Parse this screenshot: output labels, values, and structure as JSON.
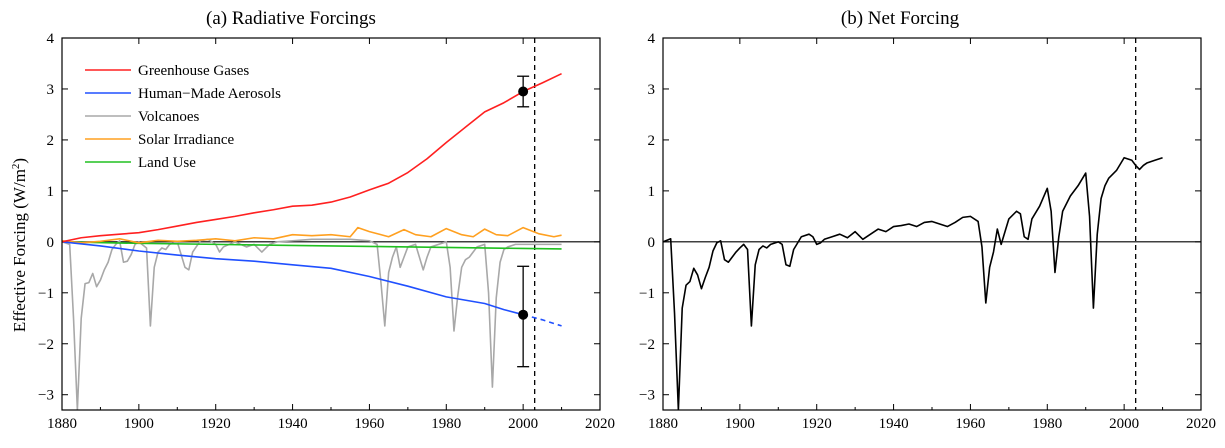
{
  "chart_data": [
    {
      "type": "line",
      "title": "(a)  Radiative Forcings",
      "ylabel": "Effective Forcing (W/m²)",
      "xlim": [
        1880,
        2020
      ],
      "ylim": [
        -3.3,
        4
      ],
      "xticks": [
        1880,
        1900,
        1920,
        1940,
        1960,
        1980,
        2000,
        2020
      ],
      "yticks": [
        -3,
        -2,
        -1,
        0,
        1,
        2,
        3,
        4
      ],
      "legend_position": "top-left",
      "reference_line_year": 2003,
      "series": [
        {
          "name": "Greenhouse Gases",
          "color": "#ff2020",
          "points": [
            [
              1880,
              0
            ],
            [
              1885,
              0.08
            ],
            [
              1890,
              0.12
            ],
            [
              1895,
              0.15
            ],
            [
              1900,
              0.18
            ],
            [
              1905,
              0.24
            ],
            [
              1910,
              0.31
            ],
            [
              1915,
              0.38
            ],
            [
              1920,
              0.44
            ],
            [
              1925,
              0.5
            ],
            [
              1930,
              0.57
            ],
            [
              1935,
              0.63
            ],
            [
              1940,
              0.7
            ],
            [
              1945,
              0.72
            ],
            [
              1950,
              0.78
            ],
            [
              1955,
              0.88
            ],
            [
              1960,
              1.02
            ],
            [
              1965,
              1.15
            ],
            [
              1970,
              1.36
            ],
            [
              1975,
              1.63
            ],
            [
              1980,
              1.95
            ],
            [
              1985,
              2.25
            ],
            [
              1990,
              2.55
            ],
            [
              1995,
              2.73
            ],
            [
              2000,
              2.95
            ],
            [
              2005,
              3.12
            ],
            [
              2010,
              3.3
            ]
          ]
        },
        {
          "name": "Human−Made Aerosols",
          "color": "#2050ff",
          "dashed_from": 2000,
          "points": [
            [
              1880,
              0
            ],
            [
              1890,
              -0.08
            ],
            [
              1900,
              -0.18
            ],
            [
              1910,
              -0.26
            ],
            [
              1920,
              -0.33
            ],
            [
              1930,
              -0.38
            ],
            [
              1940,
              -0.45
            ],
            [
              1950,
              -0.52
            ],
            [
              1960,
              -0.68
            ],
            [
              1970,
              -0.87
            ],
            [
              1980,
              -1.08
            ],
            [
              1990,
              -1.21
            ],
            [
              1995,
              -1.33
            ],
            [
              2000,
              -1.43
            ],
            [
              2005,
              -1.53
            ],
            [
              2010,
              -1.65
            ]
          ]
        },
        {
          "name": "Volcanoes",
          "color": "#a8a8a8",
          "points": [
            [
              1880,
              0
            ],
            [
              1882,
              -0.05
            ],
            [
              1883,
              -1.5
            ],
            [
              1884,
              -3.3
            ],
            [
              1885,
              -1.5
            ],
            [
              1886,
              -0.82
            ],
            [
              1887,
              -0.8
            ],
            [
              1888,
              -0.62
            ],
            [
              1889,
              -0.88
            ],
            [
              1890,
              -0.75
            ],
            [
              1891,
              -0.55
            ],
            [
              1892,
              -0.4
            ],
            [
              1893,
              -0.15
            ],
            [
              1894,
              -0.05
            ],
            [
              1895,
              0.02
            ],
            [
              1896,
              -0.4
            ],
            [
              1897,
              -0.38
            ],
            [
              1898,
              -0.25
            ],
            [
              1899,
              -0.05
            ],
            [
              1900,
              0
            ],
            [
              1902,
              -0.12
            ],
            [
              1903,
              -1.65
            ],
            [
              1904,
              -0.5
            ],
            [
              1905,
              -0.2
            ],
            [
              1906,
              -0.12
            ],
            [
              1907,
              -0.15
            ],
            [
              1908,
              -0.05
            ],
            [
              1910,
              0
            ],
            [
              1912,
              -0.5
            ],
            [
              1913,
              -0.55
            ],
            [
              1914,
              -0.2
            ],
            [
              1916,
              0.02
            ],
            [
              1918,
              0.05
            ],
            [
              1920,
              -0.05
            ],
            [
              1921,
              -0.2
            ],
            [
              1922,
              -0.1
            ],
            [
              1925,
              0
            ],
            [
              1928,
              -0.1
            ],
            [
              1930,
              -0.05
            ],
            [
              1932,
              -0.2
            ],
            [
              1934,
              -0.05
            ],
            [
              1936,
              0
            ],
            [
              1940,
              0.02
            ],
            [
              1945,
              0.05
            ],
            [
              1950,
              0.05
            ],
            [
              1955,
              0.05
            ],
            [
              1960,
              0.02
            ],
            [
              1962,
              -0.05
            ],
            [
              1963,
              -0.8
            ],
            [
              1964,
              -1.65
            ],
            [
              1965,
              -0.6
            ],
            [
              1966,
              -0.3
            ],
            [
              1967,
              -0.1
            ],
            [
              1968,
              -0.5
            ],
            [
              1969,
              -0.3
            ],
            [
              1970,
              -0.1
            ],
            [
              1972,
              -0.05
            ],
            [
              1974,
              -0.55
            ],
            [
              1975,
              -0.3
            ],
            [
              1976,
              -0.1
            ],
            [
              1978,
              -0.05
            ],
            [
              1980,
              0
            ],
            [
              1981,
              -0.5
            ],
            [
              1982,
              -1.75
            ],
            [
              1983,
              -1.05
            ],
            [
              1984,
              -0.5
            ],
            [
              1985,
              -0.35
            ],
            [
              1986,
              -0.3
            ],
            [
              1987,
              -0.2
            ],
            [
              1988,
              -0.1
            ],
            [
              1990,
              -0.05
            ],
            [
              1991,
              -1.0
            ],
            [
              1992,
              -2.85
            ],
            [
              1993,
              -1.1
            ],
            [
              1994,
              -0.4
            ],
            [
              1995,
              -0.15
            ],
            [
              1996,
              -0.1
            ],
            [
              1998,
              -0.05
            ],
            [
              2000,
              -0.05
            ],
            [
              2005,
              -0.05
            ],
            [
              2010,
              -0.05
            ]
          ]
        },
        {
          "name": "Solar Irradiance",
          "color": "#ffa020",
          "points": [
            [
              1880,
              0.02
            ],
            [
              1885,
              -0.02
            ],
            [
              1890,
              0.01
            ],
            [
              1895,
              0.06
            ],
            [
              1900,
              -0.02
            ],
            [
              1905,
              0.03
            ],
            [
              1910,
              0.01
            ],
            [
              1915,
              0.03
            ],
            [
              1920,
              0.06
            ],
            [
              1925,
              0.02
            ],
            [
              1930,
              0.08
            ],
            [
              1935,
              0.06
            ],
            [
              1940,
              0.14
            ],
            [
              1945,
              0.12
            ],
            [
              1950,
              0.14
            ],
            [
              1955,
              0.1
            ],
            [
              1957,
              0.28
            ],
            [
              1960,
              0.2
            ],
            [
              1965,
              0.1
            ],
            [
              1969,
              0.24
            ],
            [
              1972,
              0.14
            ],
            [
              1976,
              0.1
            ],
            [
              1980,
              0.26
            ],
            [
              1984,
              0.14
            ],
            [
              1987,
              0.1
            ],
            [
              1990,
              0.25
            ],
            [
              1993,
              0.14
            ],
            [
              1996,
              0.12
            ],
            [
              2000,
              0.28
            ],
            [
              2004,
              0.16
            ],
            [
              2008,
              0.1
            ],
            [
              2010,
              0.13
            ]
          ]
        },
        {
          "name": "Land Use",
          "color": "#20c020",
          "points": [
            [
              1880,
              0
            ],
            [
              1900,
              -0.03
            ],
            [
              1920,
              -0.05
            ],
            [
              1940,
              -0.07
            ],
            [
              1960,
              -0.09
            ],
            [
              1980,
              -0.11
            ],
            [
              2000,
              -0.13
            ],
            [
              2010,
              -0.14
            ]
          ]
        }
      ],
      "error_bars": [
        {
          "x": 2000,
          "y": 2.95,
          "low": 2.65,
          "high": 3.25
        },
        {
          "x": 2000,
          "y": -1.43,
          "low": -2.45,
          "high": -0.48
        }
      ]
    },
    {
      "type": "line",
      "title": "(b)  Net Forcing",
      "xlim": [
        1880,
        2020
      ],
      "ylim": [
        -3.3,
        4
      ],
      "xticks": [
        1880,
        1900,
        1920,
        1940,
        1960,
        1980,
        2000,
        2020
      ],
      "yticks": [
        -3,
        -2,
        -1,
        0,
        1,
        2,
        3,
        4
      ],
      "reference_line_year": 2003,
      "series": [
        {
          "name": "Net Forcing",
          "color": "#000000",
          "points": [
            [
              1880,
              0
            ],
            [
              1882,
              0.06
            ],
            [
              1883,
              -1.4
            ],
            [
              1884,
              -3.3
            ],
            [
              1885,
              -1.3
            ],
            [
              1886,
              -0.85
            ],
            [
              1887,
              -0.78
            ],
            [
              1888,
              -0.52
            ],
            [
              1889,
              -0.65
            ],
            [
              1890,
              -0.92
            ],
            [
              1891,
              -0.7
            ],
            [
              1892,
              -0.5
            ],
            [
              1893,
              -0.18
            ],
            [
              1894,
              -0.02
            ],
            [
              1895,
              0.02
            ],
            [
              1896,
              -0.35
            ],
            [
              1897,
              -0.4
            ],
            [
              1898,
              -0.3
            ],
            [
              1899,
              -0.2
            ],
            [
              1900,
              -0.12
            ],
            [
              1901,
              -0.05
            ],
            [
              1902,
              -0.15
            ],
            [
              1903,
              -1.65
            ],
            [
              1904,
              -0.45
            ],
            [
              1905,
              -0.15
            ],
            [
              1906,
              -0.08
            ],
            [
              1907,
              -0.12
            ],
            [
              1908,
              -0.05
            ],
            [
              1910,
              0
            ],
            [
              1911,
              -0.05
            ],
            [
              1912,
              -0.45
            ],
            [
              1913,
              -0.48
            ],
            [
              1914,
              -0.15
            ],
            [
              1916,
              0.1
            ],
            [
              1918,
              0.15
            ],
            [
              1919,
              0.1
            ],
            [
              1920,
              -0.05
            ],
            [
              1921,
              -0.02
            ],
            [
              1922,
              0.05
            ],
            [
              1924,
              0.1
            ],
            [
              1926,
              0.15
            ],
            [
              1928,
              0.08
            ],
            [
              1930,
              0.2
            ],
            [
              1932,
              0.05
            ],
            [
              1934,
              0.15
            ],
            [
              1936,
              0.25
            ],
            [
              1938,
              0.2
            ],
            [
              1940,
              0.3
            ],
            [
              1942,
              0.32
            ],
            [
              1944,
              0.35
            ],
            [
              1946,
              0.3
            ],
            [
              1948,
              0.38
            ],
            [
              1950,
              0.4
            ],
            [
              1952,
              0.35
            ],
            [
              1954,
              0.3
            ],
            [
              1956,
              0.38
            ],
            [
              1958,
              0.48
            ],
            [
              1960,
              0.5
            ],
            [
              1962,
              0.4
            ],
            [
              1963,
              -0.1
            ],
            [
              1964,
              -1.2
            ],
            [
              1965,
              -0.5
            ],
            [
              1966,
              -0.2
            ],
            [
              1967,
              0.25
            ],
            [
              1968,
              -0.05
            ],
            [
              1969,
              0.2
            ],
            [
              1970,
              0.45
            ],
            [
              1972,
              0.6
            ],
            [
              1973,
              0.55
            ],
            [
              1974,
              0.1
            ],
            [
              1975,
              0.05
            ],
            [
              1976,
              0.45
            ],
            [
              1978,
              0.7
            ],
            [
              1980,
              1.05
            ],
            [
              1981,
              0.6
            ],
            [
              1982,
              -0.6
            ],
            [
              1983,
              0.1
            ],
            [
              1984,
              0.6
            ],
            [
              1985,
              0.75
            ],
            [
              1986,
              0.9
            ],
            [
              1988,
              1.1
            ],
            [
              1990,
              1.35
            ],
            [
              1991,
              0.5
            ],
            [
              1992,
              -1.3
            ],
            [
              1993,
              0.15
            ],
            [
              1994,
              0.85
            ],
            [
              1995,
              1.1
            ],
            [
              1996,
              1.25
            ],
            [
              1998,
              1.4
            ],
            [
              2000,
              1.65
            ],
            [
              2002,
              1.6
            ],
            [
              2003,
              1.5
            ],
            [
              2004,
              1.42
            ],
            [
              2005,
              1.5
            ],
            [
              2006,
              1.55
            ],
            [
              2008,
              1.6
            ],
            [
              2010,
              1.65
            ]
          ]
        }
      ]
    }
  ]
}
